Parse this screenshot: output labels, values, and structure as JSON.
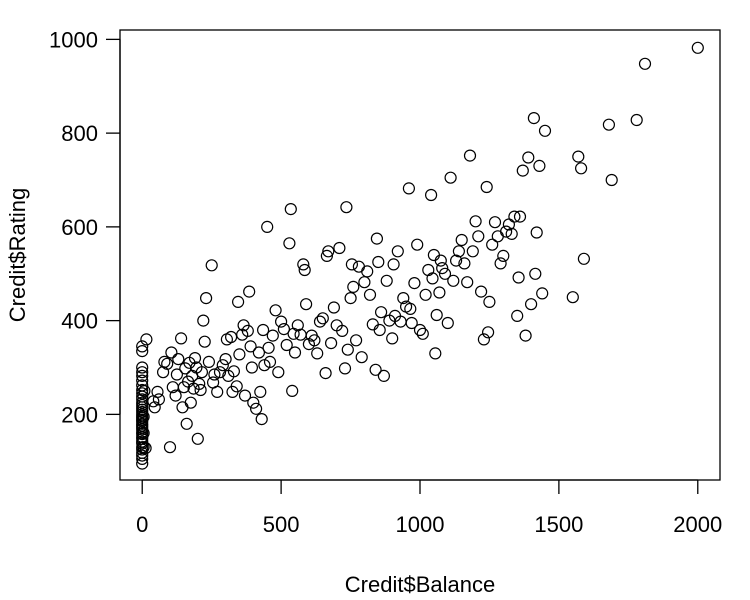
{
  "chart_data": {
    "type": "scatter",
    "title": "",
    "xlabel": "Credit$Balance",
    "ylabel": "Credit$Rating",
    "xlim": [
      -80,
      2080
    ],
    "ylim": [
      60,
      1020
    ],
    "xticks": [
      0,
      500,
      1000,
      1500,
      2000
    ],
    "yticks": [
      200,
      400,
      600,
      800,
      1000
    ],
    "marker": "open-circle",
    "grid": false,
    "points": [
      [
        0,
        95
      ],
      [
        0,
        105
      ],
      [
        0,
        112
      ],
      [
        0,
        118
      ],
      [
        0,
        125
      ],
      [
        0,
        130
      ],
      [
        0,
        138
      ],
      [
        0,
        142
      ],
      [
        0,
        148
      ],
      [
        0,
        152
      ],
      [
        0,
        158
      ],
      [
        0,
        162
      ],
      [
        0,
        168
      ],
      [
        0,
        172
      ],
      [
        0,
        176
      ],
      [
        0,
        180
      ],
      [
        0,
        185
      ],
      [
        0,
        188
      ],
      [
        0,
        192
      ],
      [
        0,
        196
      ],
      [
        0,
        200
      ],
      [
        0,
        205
      ],
      [
        0,
        210
      ],
      [
        0,
        215
      ],
      [
        0,
        220
      ],
      [
        0,
        225
      ],
      [
        0,
        232
      ],
      [
        0,
        238
      ],
      [
        0,
        245
      ],
      [
        0,
        252
      ],
      [
        0,
        262
      ],
      [
        0,
        272
      ],
      [
        0,
        282
      ],
      [
        0,
        290
      ],
      [
        0,
        300
      ],
      [
        0,
        335
      ],
      [
        0,
        345
      ],
      [
        5,
        130
      ],
      [
        5,
        160
      ],
      [
        5,
        195
      ],
      [
        8,
        250
      ],
      [
        12,
        128
      ],
      [
        15,
        360
      ],
      [
        40,
        228
      ],
      [
        45,
        215
      ],
      [
        55,
        248
      ],
      [
        60,
        232
      ],
      [
        75,
        290
      ],
      [
        80,
        312
      ],
      [
        90,
        308
      ],
      [
        100,
        130
      ],
      [
        105,
        332
      ],
      [
        110,
        258
      ],
      [
        120,
        240
      ],
      [
        125,
        285
      ],
      [
        130,
        318
      ],
      [
        140,
        362
      ],
      [
        145,
        215
      ],
      [
        150,
        258
      ],
      [
        155,
        298
      ],
      [
        160,
        180
      ],
      [
        165,
        270
      ],
      [
        170,
        310
      ],
      [
        175,
        225
      ],
      [
        180,
        282
      ],
      [
        185,
        255
      ],
      [
        190,
        320
      ],
      [
        195,
        300
      ],
      [
        200,
        148
      ],
      [
        205,
        265
      ],
      [
        210,
        252
      ],
      [
        215,
        290
      ],
      [
        220,
        400
      ],
      [
        225,
        355
      ],
      [
        230,
        448
      ],
      [
        240,
        312
      ],
      [
        250,
        518
      ],
      [
        255,
        268
      ],
      [
        260,
        285
      ],
      [
        270,
        248
      ],
      [
        280,
        290
      ],
      [
        290,
        305
      ],
      [
        300,
        318
      ],
      [
        305,
        360
      ],
      [
        310,
        282
      ],
      [
        320,
        365
      ],
      [
        325,
        248
      ],
      [
        330,
        292
      ],
      [
        340,
        260
      ],
      [
        345,
        440
      ],
      [
        350,
        328
      ],
      [
        360,
        370
      ],
      [
        365,
        390
      ],
      [
        370,
        240
      ],
      [
        380,
        378
      ],
      [
        385,
        462
      ],
      [
        390,
        345
      ],
      [
        395,
        300
      ],
      [
        400,
        225
      ],
      [
        410,
        212
      ],
      [
        420,
        332
      ],
      [
        425,
        248
      ],
      [
        430,
        190
      ],
      [
        435,
        380
      ],
      [
        440,
        305
      ],
      [
        450,
        600
      ],
      [
        455,
        342
      ],
      [
        460,
        312
      ],
      [
        470,
        368
      ],
      [
        480,
        422
      ],
      [
        490,
        290
      ],
      [
        500,
        398
      ],
      [
        510,
        382
      ],
      [
        520,
        348
      ],
      [
        530,
        565
      ],
      [
        535,
        638
      ],
      [
        540,
        250
      ],
      [
        545,
        372
      ],
      [
        550,
        332
      ],
      [
        560,
        390
      ],
      [
        570,
        370
      ],
      [
        580,
        520
      ],
      [
        585,
        508
      ],
      [
        590,
        435
      ],
      [
        600,
        350
      ],
      [
        610,
        368
      ],
      [
        620,
        358
      ],
      [
        630,
        330
      ],
      [
        640,
        398
      ],
      [
        650,
        405
      ],
      [
        660,
        288
      ],
      [
        665,
        538
      ],
      [
        670,
        548
      ],
      [
        680,
        352
      ],
      [
        690,
        428
      ],
      [
        700,
        390
      ],
      [
        710,
        555
      ],
      [
        720,
        378
      ],
      [
        730,
        298
      ],
      [
        735,
        642
      ],
      [
        740,
        338
      ],
      [
        750,
        448
      ],
      [
        755,
        520
      ],
      [
        760,
        472
      ],
      [
        770,
        358
      ],
      [
        780,
        515
      ],
      [
        790,
        322
      ],
      [
        800,
        482
      ],
      [
        810,
        505
      ],
      [
        820,
        455
      ],
      [
        830,
        392
      ],
      [
        840,
        295
      ],
      [
        845,
        575
      ],
      [
        850,
        525
      ],
      [
        855,
        380
      ],
      [
        860,
        418
      ],
      [
        870,
        282
      ],
      [
        880,
        485
      ],
      [
        890,
        400
      ],
      [
        900,
        362
      ],
      [
        905,
        520
      ],
      [
        910,
        410
      ],
      [
        920,
        548
      ],
      [
        930,
        398
      ],
      [
        940,
        448
      ],
      [
        950,
        430
      ],
      [
        960,
        682
      ],
      [
        965,
        425
      ],
      [
        970,
        395
      ],
      [
        980,
        480
      ],
      [
        990,
        562
      ],
      [
        1000,
        380
      ],
      [
        1010,
        372
      ],
      [
        1020,
        455
      ],
      [
        1030,
        508
      ],
      [
        1040,
        668
      ],
      [
        1045,
        490
      ],
      [
        1050,
        540
      ],
      [
        1055,
        330
      ],
      [
        1060,
        412
      ],
      [
        1070,
        460
      ],
      [
        1075,
        528
      ],
      [
        1080,
        512
      ],
      [
        1090,
        500
      ],
      [
        1100,
        395
      ],
      [
        1110,
        705
      ],
      [
        1120,
        485
      ],
      [
        1130,
        528
      ],
      [
        1140,
        548
      ],
      [
        1150,
        572
      ],
      [
        1160,
        522
      ],
      [
        1170,
        482
      ],
      [
        1180,
        752
      ],
      [
        1190,
        548
      ],
      [
        1200,
        612
      ],
      [
        1210,
        580
      ],
      [
        1220,
        462
      ],
      [
        1230,
        360
      ],
      [
        1240,
        685
      ],
      [
        1245,
        375
      ],
      [
        1250,
        440
      ],
      [
        1260,
        562
      ],
      [
        1270,
        610
      ],
      [
        1280,
        580
      ],
      [
        1290,
        522
      ],
      [
        1300,
        538
      ],
      [
        1310,
        590
      ],
      [
        1320,
        605
      ],
      [
        1330,
        585
      ],
      [
        1340,
        622
      ],
      [
        1350,
        410
      ],
      [
        1355,
        492
      ],
      [
        1360,
        622
      ],
      [
        1370,
        720
      ],
      [
        1380,
        368
      ],
      [
        1390,
        748
      ],
      [
        1400,
        435
      ],
      [
        1410,
        832
      ],
      [
        1415,
        500
      ],
      [
        1420,
        588
      ],
      [
        1430,
        730
      ],
      [
        1440,
        458
      ],
      [
        1450,
        805
      ],
      [
        1550,
        450
      ],
      [
        1570,
        750
      ],
      [
        1580,
        725
      ],
      [
        1590,
        532
      ],
      [
        1680,
        818
      ],
      [
        1690,
        700
      ],
      [
        1780,
        828
      ],
      [
        1810,
        948
      ],
      [
        2000,
        982
      ]
    ]
  }
}
